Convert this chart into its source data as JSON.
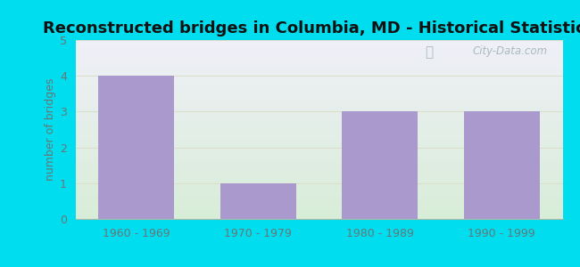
{
  "title": "Reconstructed bridges in Columbia, MD - Historical Statistics",
  "categories": [
    "1960 - 1969",
    "1970 - 1979",
    "1980 - 1989",
    "1990 - 1999"
  ],
  "values": [
    4,
    1,
    3,
    3
  ],
  "bar_color": "#aa99cc",
  "ylabel": "number of bridges",
  "ylim": [
    0,
    5
  ],
  "yticks": [
    0,
    1,
    2,
    3,
    4,
    5
  ],
  "background_outer": "#00ddee",
  "background_top": "#f0f0f8",
  "background_bottom": "#e0f0e0",
  "grid_color": "#ddddcc",
  "title_fontsize": 13,
  "axis_label_fontsize": 9,
  "tick_fontsize": 9,
  "tick_color": "#667777",
  "watermark_text": "City-Data.com",
  "watermark_color": "#aabbbb"
}
